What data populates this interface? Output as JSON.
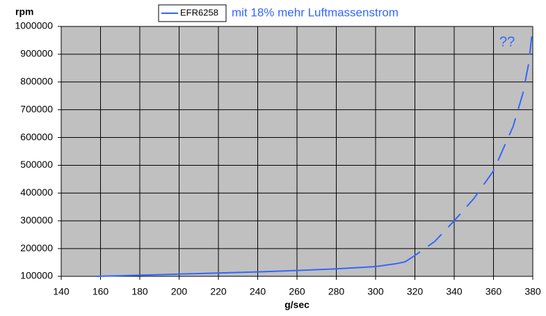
{
  "chart_data": {
    "type": "line",
    "ylabel": "rpm",
    "xlabel": "g/sec",
    "annotations": [
      "mit 18% mehr Luftmassenstrom",
      "??"
    ],
    "series": [
      {
        "name": "EFR6258",
        "color": "#3366ff",
        "style": "solid",
        "x": [
          158,
          180,
          200,
          220,
          240,
          260,
          280,
          300,
          310,
          315
        ],
        "values": [
          100000,
          104000,
          108000,
          112000,
          116000,
          121000,
          127000,
          135000,
          145000,
          152000
        ]
      },
      {
        "color": "#3366ff",
        "style": "dashed",
        "x": [
          315,
          320,
          330,
          340,
          350,
          360,
          370,
          375,
          378,
          380
        ],
        "values": [
          152000,
          175000,
          225000,
          300000,
          380000,
          480000,
          640000,
          760000,
          870000,
          1000000
        ]
      }
    ],
    "xlim": [
      140,
      380
    ],
    "xticks": [
      140,
      160,
      180,
      200,
      220,
      240,
      260,
      280,
      300,
      320,
      340,
      360,
      380
    ],
    "ylim": [
      100000,
      1000000
    ],
    "yticks": [
      100000,
      200000,
      300000,
      400000,
      500000,
      600000,
      700000,
      800000,
      900000,
      1000000
    ],
    "grid": true,
    "background": "#c0c0c0"
  }
}
